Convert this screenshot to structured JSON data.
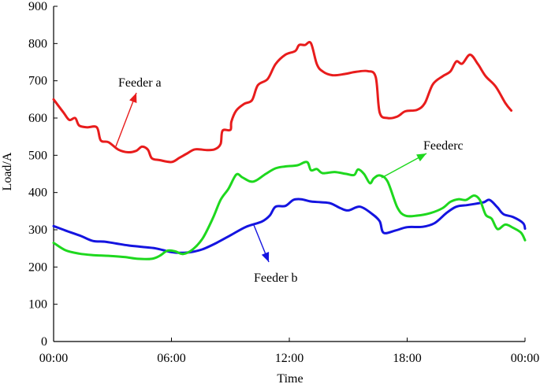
{
  "chart_data": {
    "type": "line",
    "xlabel": "Time",
    "ylabel": "Load/A",
    "xlim": [
      0,
      24
    ],
    "ylim": [
      0,
      900
    ],
    "x_ticks": [
      {
        "value": 0,
        "label": "00:00"
      },
      {
        "value": 6,
        "label": "06:00"
      },
      {
        "value": 12,
        "label": "12:00"
      },
      {
        "value": 18,
        "label": "18:00"
      },
      {
        "value": 24,
        "label": "00:00"
      }
    ],
    "y_ticks": [
      0,
      100,
      200,
      300,
      400,
      500,
      600,
      700,
      800,
      900
    ],
    "series": [
      {
        "name": "Feeder a",
        "color": "#e81c1c",
        "points": [
          [
            0,
            650
          ],
          [
            0.5,
            615
          ],
          [
            0.8,
            595
          ],
          [
            1.1,
            600
          ],
          [
            1.3,
            580
          ],
          [
            1.7,
            575
          ],
          [
            2.2,
            575
          ],
          [
            2.4,
            540
          ],
          [
            2.8,
            535
          ],
          [
            3.3,
            515
          ],
          [
            3.8,
            508
          ],
          [
            4.2,
            512
          ],
          [
            4.5,
            523
          ],
          [
            4.8,
            515
          ],
          [
            5.0,
            492
          ],
          [
            5.4,
            487
          ],
          [
            6.0,
            482
          ],
          [
            6.4,
            493
          ],
          [
            6.8,
            505
          ],
          [
            7.2,
            516
          ],
          [
            7.8,
            514
          ],
          [
            8.2,
            516
          ],
          [
            8.5,
            530
          ],
          [
            8.6,
            566
          ],
          [
            9.0,
            568
          ],
          [
            9.05,
            590
          ],
          [
            9.3,
            620
          ],
          [
            9.7,
            638
          ],
          [
            10.1,
            648
          ],
          [
            10.4,
            688
          ],
          [
            10.9,
            705
          ],
          [
            11.3,
            745
          ],
          [
            11.8,
            770
          ],
          [
            12.3,
            780
          ],
          [
            12.5,
            796
          ],
          [
            12.8,
            796
          ],
          [
            13.1,
            801
          ],
          [
            13.4,
            745
          ],
          [
            13.7,
            725
          ],
          [
            14.2,
            715
          ],
          [
            14.8,
            718
          ],
          [
            15.4,
            724
          ],
          [
            16.0,
            726
          ],
          [
            16.4,
            710
          ],
          [
            16.6,
            615
          ],
          [
            17.0,
            600
          ],
          [
            17.5,
            604
          ],
          [
            17.9,
            618
          ],
          [
            18.5,
            622
          ],
          [
            18.9,
            640
          ],
          [
            19.3,
            690
          ],
          [
            19.8,
            712
          ],
          [
            20.2,
            725
          ],
          [
            20.5,
            752
          ],
          [
            20.8,
            746
          ],
          [
            21.2,
            770
          ],
          [
            21.6,
            745
          ],
          [
            22.0,
            712
          ],
          [
            22.5,
            685
          ],
          [
            23.0,
            640
          ],
          [
            23.3,
            620
          ]
        ]
      },
      {
        "name": "Feeder b",
        "color": "#1414e0",
        "points": [
          [
            0,
            310
          ],
          [
            0.6,
            298
          ],
          [
            1.4,
            283
          ],
          [
            2.0,
            270
          ],
          [
            2.6,
            268
          ],
          [
            3.2,
            263
          ],
          [
            3.8,
            258
          ],
          [
            4.5,
            254
          ],
          [
            5.2,
            250
          ],
          [
            6.0,
            240
          ],
          [
            6.5,
            238
          ],
          [
            7.0,
            240
          ],
          [
            7.6,
            248
          ],
          [
            8.3,
            265
          ],
          [
            9.0,
            285
          ],
          [
            9.8,
            308
          ],
          [
            10.6,
            322
          ],
          [
            11.0,
            338
          ],
          [
            11.3,
            362
          ],
          [
            11.8,
            364
          ],
          [
            12.2,
            380
          ],
          [
            12.6,
            382
          ],
          [
            13.1,
            376
          ],
          [
            13.6,
            374
          ],
          [
            14.1,
            371
          ],
          [
            14.6,
            358
          ],
          [
            15.0,
            352
          ],
          [
            15.6,
            362
          ],
          [
            16.2,
            343
          ],
          [
            16.6,
            323
          ],
          [
            16.8,
            292
          ],
          [
            17.4,
            298
          ],
          [
            18.0,
            307
          ],
          [
            18.8,
            308
          ],
          [
            19.4,
            318
          ],
          [
            20.0,
            345
          ],
          [
            20.5,
            362
          ],
          [
            21.0,
            366
          ],
          [
            21.4,
            369
          ],
          [
            21.9,
            374
          ],
          [
            22.2,
            380
          ],
          [
            22.6,
            360
          ],
          [
            22.9,
            342
          ],
          [
            23.4,
            334
          ],
          [
            23.9,
            318
          ],
          [
            24.0,
            303
          ]
        ]
      },
      {
        "name": "Feederc",
        "color": "#1ed81e",
        "points": [
          [
            0,
            265
          ],
          [
            0.6,
            245
          ],
          [
            1.3,
            236
          ],
          [
            2.0,
            232
          ],
          [
            2.8,
            230
          ],
          [
            3.6,
            227
          ],
          [
            4.3,
            222
          ],
          [
            5.0,
            222
          ],
          [
            5.4,
            230
          ],
          [
            5.8,
            244
          ],
          [
            6.2,
            242
          ],
          [
            6.6,
            235
          ],
          [
            7.1,
            248
          ],
          [
            7.6,
            278
          ],
          [
            8.1,
            330
          ],
          [
            8.5,
            380
          ],
          [
            8.9,
            410
          ],
          [
            9.3,
            448
          ],
          [
            9.6,
            441
          ],
          [
            10.0,
            430
          ],
          [
            10.3,
            432
          ],
          [
            10.8,
            450
          ],
          [
            11.3,
            465
          ],
          [
            11.8,
            470
          ],
          [
            12.4,
            473
          ],
          [
            12.9,
            482
          ],
          [
            13.1,
            460
          ],
          [
            13.4,
            463
          ],
          [
            13.7,
            452
          ],
          [
            14.3,
            455
          ],
          [
            14.9,
            450
          ],
          [
            15.3,
            447
          ],
          [
            15.5,
            462
          ],
          [
            15.8,
            450
          ],
          [
            16.1,
            425
          ],
          [
            16.3,
            438
          ],
          [
            16.6,
            446
          ],
          [
            17.0,
            430
          ],
          [
            17.5,
            360
          ],
          [
            17.9,
            338
          ],
          [
            18.5,
            338
          ],
          [
            19.2,
            345
          ],
          [
            19.8,
            358
          ],
          [
            20.2,
            375
          ],
          [
            20.6,
            382
          ],
          [
            21.0,
            380
          ],
          [
            21.4,
            392
          ],
          [
            21.7,
            380
          ],
          [
            22.0,
            340
          ],
          [
            22.3,
            330
          ],
          [
            22.6,
            302
          ],
          [
            23.0,
            314
          ],
          [
            23.4,
            305
          ],
          [
            23.8,
            292
          ],
          [
            24.0,
            272
          ]
        ]
      }
    ],
    "annotations": [
      {
        "text": "Feeder a",
        "series": "Feeder a"
      },
      {
        "text": "Feeder b",
        "series": "Feeder b"
      },
      {
        "text": "Feederc",
        "series": "Feederc"
      }
    ]
  }
}
